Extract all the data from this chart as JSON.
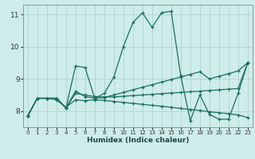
{
  "xlabel": "Humidex (Indice chaleur)",
  "xlim": [
    -0.5,
    23.5
  ],
  "ylim": [
    7.5,
    11.3
  ],
  "yticks": [
    8,
    9,
    10,
    11
  ],
  "xticks": [
    0,
    1,
    2,
    3,
    4,
    5,
    6,
    7,
    8,
    9,
    10,
    11,
    12,
    13,
    14,
    15,
    16,
    17,
    18,
    19,
    20,
    21,
    22,
    23
  ],
  "background_color": "#ceecea",
  "grid_color": "#b0d4d0",
  "line_color": "#1a6e62",
  "lines": [
    {
      "x": [
        0,
        1,
        2,
        3,
        4,
        5,
        6,
        7,
        8,
        9,
        10,
        11,
        12,
        13,
        14,
        15,
        16,
        17,
        18,
        19,
        20,
        21,
        22,
        23
      ],
      "y": [
        7.85,
        8.4,
        8.4,
        8.4,
        8.1,
        9.4,
        9.35,
        8.4,
        8.55,
        9.05,
        10.0,
        10.75,
        11.05,
        10.6,
        11.05,
        11.1,
        9.1,
        7.7,
        8.5,
        7.9,
        7.75,
        7.75,
        8.55,
        9.5
      ]
    },
    {
      "x": [
        0,
        1,
        2,
        3,
        4,
        5,
        6,
        7,
        8,
        9,
        10,
        11,
        12,
        13,
        14,
        15,
        16,
        17,
        18,
        19,
        20,
        21,
        22,
        23
      ],
      "y": [
        7.85,
        8.4,
        8.4,
        8.4,
        8.1,
        8.62,
        8.45,
        8.4,
        8.42,
        8.5,
        8.58,
        8.66,
        8.74,
        8.82,
        8.9,
        8.98,
        9.06,
        9.14,
        9.22,
        9.0,
        9.08,
        9.16,
        9.25,
        9.5
      ]
    },
    {
      "x": [
        0,
        1,
        2,
        3,
        4,
        5,
        6,
        7,
        8,
        9,
        10,
        11,
        12,
        13,
        14,
        15,
        16,
        17,
        18,
        19,
        20,
        21,
        22,
        23
      ],
      "y": [
        7.85,
        8.4,
        8.4,
        8.35,
        8.12,
        8.35,
        8.32,
        8.35,
        8.33,
        8.3,
        8.27,
        8.24,
        8.21,
        8.18,
        8.15,
        8.12,
        8.08,
        8.05,
        8.02,
        7.98,
        7.95,
        7.92,
        7.88,
        7.8
      ]
    },
    {
      "x": [
        0,
        1,
        2,
        3,
        4,
        5,
        6,
        7,
        8,
        9,
        10,
        11,
        12,
        13,
        14,
        15,
        16,
        17,
        18,
        19,
        20,
        21,
        22,
        23
      ],
      "y": [
        7.85,
        8.4,
        8.4,
        8.4,
        8.1,
        8.55,
        8.5,
        8.45,
        8.44,
        8.44,
        8.46,
        8.48,
        8.5,
        8.52,
        8.54,
        8.56,
        8.58,
        8.6,
        8.62,
        8.64,
        8.66,
        8.68,
        8.7,
        9.5
      ]
    }
  ]
}
